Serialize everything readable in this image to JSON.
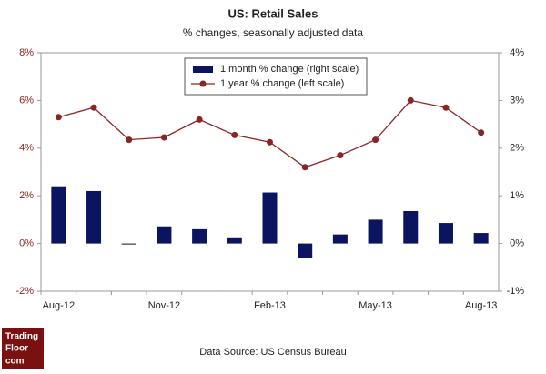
{
  "chart_data": {
    "type": "bar",
    "title": "US: Retail Sales",
    "subtitle": "% changes, seasonally adjusted data",
    "source": "Data Source: US Census Bureau",
    "categories": [
      "Aug-12",
      null,
      null,
      "Nov-12",
      null,
      null,
      "Feb-13",
      null,
      null,
      "May-13",
      null,
      null,
      "Aug-13"
    ],
    "series": [
      {
        "name": "1 month % change (right scale)",
        "type": "bar",
        "axis": "y2",
        "color": "#0b1460",
        "values": [
          1.2,
          1.1,
          -0.02,
          0.36,
          0.3,
          0.13,
          1.07,
          -0.3,
          0.19,
          0.5,
          0.68,
          0.43,
          0.22
        ]
      },
      {
        "name": "1 year % change (left scale)",
        "type": "line",
        "color": "#8b2525",
        "values": [
          5.3,
          5.7,
          4.35,
          4.45,
          5.2,
          4.55,
          4.25,
          3.2,
          3.7,
          4.35,
          6.0,
          5.7,
          4.65
        ]
      }
    ],
    "ylim": [
      -2,
      8
    ],
    "yticks": [
      {
        "value": -2,
        "label": "-2%"
      },
      {
        "value": 0,
        "label": "0%"
      },
      {
        "value": 2,
        "label": "2%"
      },
      {
        "value": 4,
        "label": "4%"
      },
      {
        "value": 6,
        "label": "6%"
      },
      {
        "value": 8,
        "label": "8%"
      }
    ],
    "y2lim": [
      -1,
      4
    ],
    "y2ticks": [
      {
        "value": -1,
        "label": "-1%"
      },
      {
        "value": 0,
        "label": "0%"
      },
      {
        "value": 1,
        "label": "1%"
      },
      {
        "value": 2,
        "label": "2%"
      },
      {
        "value": 3,
        "label": "3%"
      },
      {
        "value": 4,
        "label": "4%"
      }
    ],
    "grid": false
  },
  "logo": [
    "Trading",
    "Floor",
    "com"
  ]
}
